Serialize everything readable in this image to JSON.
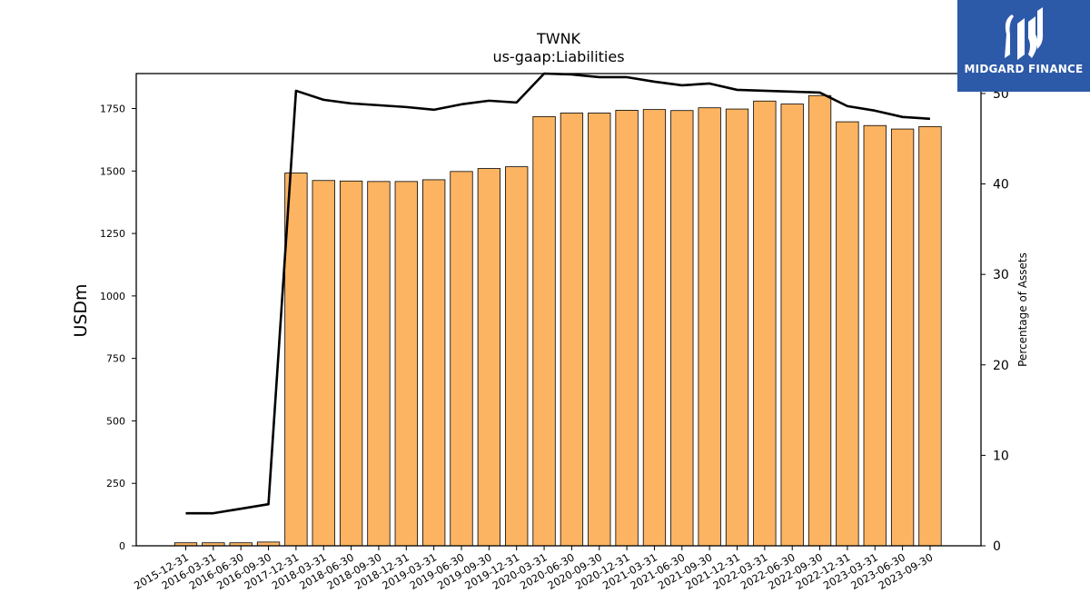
{
  "chart_data": {
    "type": "bar",
    "title": "TWNK",
    "subtitle": "us-gaap:Liabilities",
    "ylabel": "USDm",
    "y2label": "Percentage of Assets",
    "ylim": [
      0,
      1890
    ],
    "y2lim": [
      0,
      52.2
    ],
    "yticks": [
      0,
      250,
      500,
      750,
      1000,
      1250,
      1500,
      1750
    ],
    "y2ticks": [
      0,
      10,
      20,
      30,
      40,
      50
    ],
    "bar_color": "#fdb462",
    "line_color": "#000000",
    "categories": [
      "2015-12-31",
      "2016-03-31",
      "2016-06-30",
      "2016-09-30",
      "2017-12-31",
      "2018-03-31",
      "2018-06-30",
      "2018-09-30",
      "2018-12-31",
      "2019-03-31",
      "2019-06-30",
      "2019-09-30",
      "2019-12-31",
      "2020-03-31",
      "2020-06-30",
      "2020-09-30",
      "2020-12-31",
      "2021-03-31",
      "2021-06-30",
      "2021-09-30",
      "2021-12-31",
      "2022-03-31",
      "2022-06-30",
      "2022-09-30",
      "2022-12-31",
      "2023-03-31",
      "2023-06-30",
      "2023-09-30"
    ],
    "series": [
      {
        "type": "bar",
        "axis": "left",
        "values": [
          12,
          12,
          12,
          15,
          1492,
          1462,
          1460,
          1458,
          1458,
          1465,
          1498,
          1510,
          1517,
          1718,
          1732,
          1732,
          1743,
          1746,
          1742,
          1753,
          1748,
          1780,
          1768,
          1802,
          1697,
          1682,
          1668,
          1678
        ]
      },
      {
        "type": "line",
        "axis": "right",
        "values": [
          3.6,
          3.6,
          4.1,
          4.6,
          50.3,
          49.3,
          48.9,
          48.7,
          48.5,
          48.2,
          48.8,
          49.2,
          49.0,
          52.2,
          52.1,
          51.8,
          51.8,
          51.3,
          50.9,
          51.1,
          50.4,
          50.3,
          50.2,
          50.1,
          48.6,
          48.1,
          47.4,
          47.2
        ]
      }
    ]
  },
  "logo": {
    "text": "MIDGARD FINANCE",
    "color": "#2d5aa8"
  }
}
